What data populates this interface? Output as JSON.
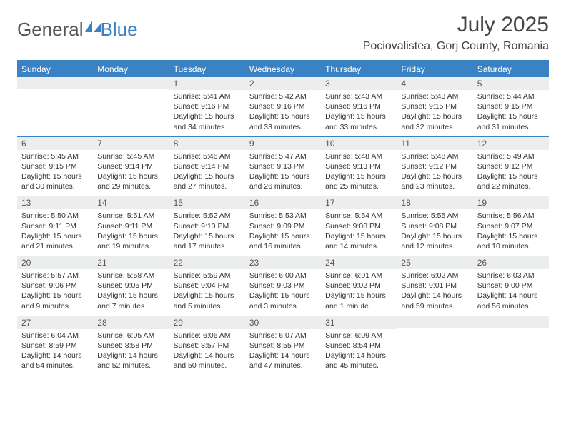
{
  "logo": {
    "text1": "General",
    "text2": "Blue"
  },
  "title": "July 2025",
  "location": "Pociovalistea, Gorj County, Romania",
  "colors": {
    "header_bg": "#3b82c4",
    "daynum_bg": "#eceded",
    "rule": "#3b82c4",
    "text": "#333333",
    "title_text": "#444444"
  },
  "weekdays": [
    "Sunday",
    "Monday",
    "Tuesday",
    "Wednesday",
    "Thursday",
    "Friday",
    "Saturday"
  ],
  "weeks": [
    [
      {
        "num": "",
        "sunrise": "",
        "sunset": "",
        "daylight": ""
      },
      {
        "num": "",
        "sunrise": "",
        "sunset": "",
        "daylight": ""
      },
      {
        "num": "1",
        "sunrise": "Sunrise: 5:41 AM",
        "sunset": "Sunset: 9:16 PM",
        "daylight": "Daylight: 15 hours and 34 minutes."
      },
      {
        "num": "2",
        "sunrise": "Sunrise: 5:42 AM",
        "sunset": "Sunset: 9:16 PM",
        "daylight": "Daylight: 15 hours and 33 minutes."
      },
      {
        "num": "3",
        "sunrise": "Sunrise: 5:43 AM",
        "sunset": "Sunset: 9:16 PM",
        "daylight": "Daylight: 15 hours and 33 minutes."
      },
      {
        "num": "4",
        "sunrise": "Sunrise: 5:43 AM",
        "sunset": "Sunset: 9:15 PM",
        "daylight": "Daylight: 15 hours and 32 minutes."
      },
      {
        "num": "5",
        "sunrise": "Sunrise: 5:44 AM",
        "sunset": "Sunset: 9:15 PM",
        "daylight": "Daylight: 15 hours and 31 minutes."
      }
    ],
    [
      {
        "num": "6",
        "sunrise": "Sunrise: 5:45 AM",
        "sunset": "Sunset: 9:15 PM",
        "daylight": "Daylight: 15 hours and 30 minutes."
      },
      {
        "num": "7",
        "sunrise": "Sunrise: 5:45 AM",
        "sunset": "Sunset: 9:14 PM",
        "daylight": "Daylight: 15 hours and 29 minutes."
      },
      {
        "num": "8",
        "sunrise": "Sunrise: 5:46 AM",
        "sunset": "Sunset: 9:14 PM",
        "daylight": "Daylight: 15 hours and 27 minutes."
      },
      {
        "num": "9",
        "sunrise": "Sunrise: 5:47 AM",
        "sunset": "Sunset: 9:13 PM",
        "daylight": "Daylight: 15 hours and 26 minutes."
      },
      {
        "num": "10",
        "sunrise": "Sunrise: 5:48 AM",
        "sunset": "Sunset: 9:13 PM",
        "daylight": "Daylight: 15 hours and 25 minutes."
      },
      {
        "num": "11",
        "sunrise": "Sunrise: 5:48 AM",
        "sunset": "Sunset: 9:12 PM",
        "daylight": "Daylight: 15 hours and 23 minutes."
      },
      {
        "num": "12",
        "sunrise": "Sunrise: 5:49 AM",
        "sunset": "Sunset: 9:12 PM",
        "daylight": "Daylight: 15 hours and 22 minutes."
      }
    ],
    [
      {
        "num": "13",
        "sunrise": "Sunrise: 5:50 AM",
        "sunset": "Sunset: 9:11 PM",
        "daylight": "Daylight: 15 hours and 21 minutes."
      },
      {
        "num": "14",
        "sunrise": "Sunrise: 5:51 AM",
        "sunset": "Sunset: 9:11 PM",
        "daylight": "Daylight: 15 hours and 19 minutes."
      },
      {
        "num": "15",
        "sunrise": "Sunrise: 5:52 AM",
        "sunset": "Sunset: 9:10 PM",
        "daylight": "Daylight: 15 hours and 17 minutes."
      },
      {
        "num": "16",
        "sunrise": "Sunrise: 5:53 AM",
        "sunset": "Sunset: 9:09 PM",
        "daylight": "Daylight: 15 hours and 16 minutes."
      },
      {
        "num": "17",
        "sunrise": "Sunrise: 5:54 AM",
        "sunset": "Sunset: 9:08 PM",
        "daylight": "Daylight: 15 hours and 14 minutes."
      },
      {
        "num": "18",
        "sunrise": "Sunrise: 5:55 AM",
        "sunset": "Sunset: 9:08 PM",
        "daylight": "Daylight: 15 hours and 12 minutes."
      },
      {
        "num": "19",
        "sunrise": "Sunrise: 5:56 AM",
        "sunset": "Sunset: 9:07 PM",
        "daylight": "Daylight: 15 hours and 10 minutes."
      }
    ],
    [
      {
        "num": "20",
        "sunrise": "Sunrise: 5:57 AM",
        "sunset": "Sunset: 9:06 PM",
        "daylight": "Daylight: 15 hours and 9 minutes."
      },
      {
        "num": "21",
        "sunrise": "Sunrise: 5:58 AM",
        "sunset": "Sunset: 9:05 PM",
        "daylight": "Daylight: 15 hours and 7 minutes."
      },
      {
        "num": "22",
        "sunrise": "Sunrise: 5:59 AM",
        "sunset": "Sunset: 9:04 PM",
        "daylight": "Daylight: 15 hours and 5 minutes."
      },
      {
        "num": "23",
        "sunrise": "Sunrise: 6:00 AM",
        "sunset": "Sunset: 9:03 PM",
        "daylight": "Daylight: 15 hours and 3 minutes."
      },
      {
        "num": "24",
        "sunrise": "Sunrise: 6:01 AM",
        "sunset": "Sunset: 9:02 PM",
        "daylight": "Daylight: 15 hours and 1 minute."
      },
      {
        "num": "25",
        "sunrise": "Sunrise: 6:02 AM",
        "sunset": "Sunset: 9:01 PM",
        "daylight": "Daylight: 14 hours and 59 minutes."
      },
      {
        "num": "26",
        "sunrise": "Sunrise: 6:03 AM",
        "sunset": "Sunset: 9:00 PM",
        "daylight": "Daylight: 14 hours and 56 minutes."
      }
    ],
    [
      {
        "num": "27",
        "sunrise": "Sunrise: 6:04 AM",
        "sunset": "Sunset: 8:59 PM",
        "daylight": "Daylight: 14 hours and 54 minutes."
      },
      {
        "num": "28",
        "sunrise": "Sunrise: 6:05 AM",
        "sunset": "Sunset: 8:58 PM",
        "daylight": "Daylight: 14 hours and 52 minutes."
      },
      {
        "num": "29",
        "sunrise": "Sunrise: 6:06 AM",
        "sunset": "Sunset: 8:57 PM",
        "daylight": "Daylight: 14 hours and 50 minutes."
      },
      {
        "num": "30",
        "sunrise": "Sunrise: 6:07 AM",
        "sunset": "Sunset: 8:55 PM",
        "daylight": "Daylight: 14 hours and 47 minutes."
      },
      {
        "num": "31",
        "sunrise": "Sunrise: 6:09 AM",
        "sunset": "Sunset: 8:54 PM",
        "daylight": "Daylight: 14 hours and 45 minutes."
      },
      {
        "num": "",
        "sunrise": "",
        "sunset": "",
        "daylight": ""
      },
      {
        "num": "",
        "sunrise": "",
        "sunset": "",
        "daylight": ""
      }
    ]
  ]
}
